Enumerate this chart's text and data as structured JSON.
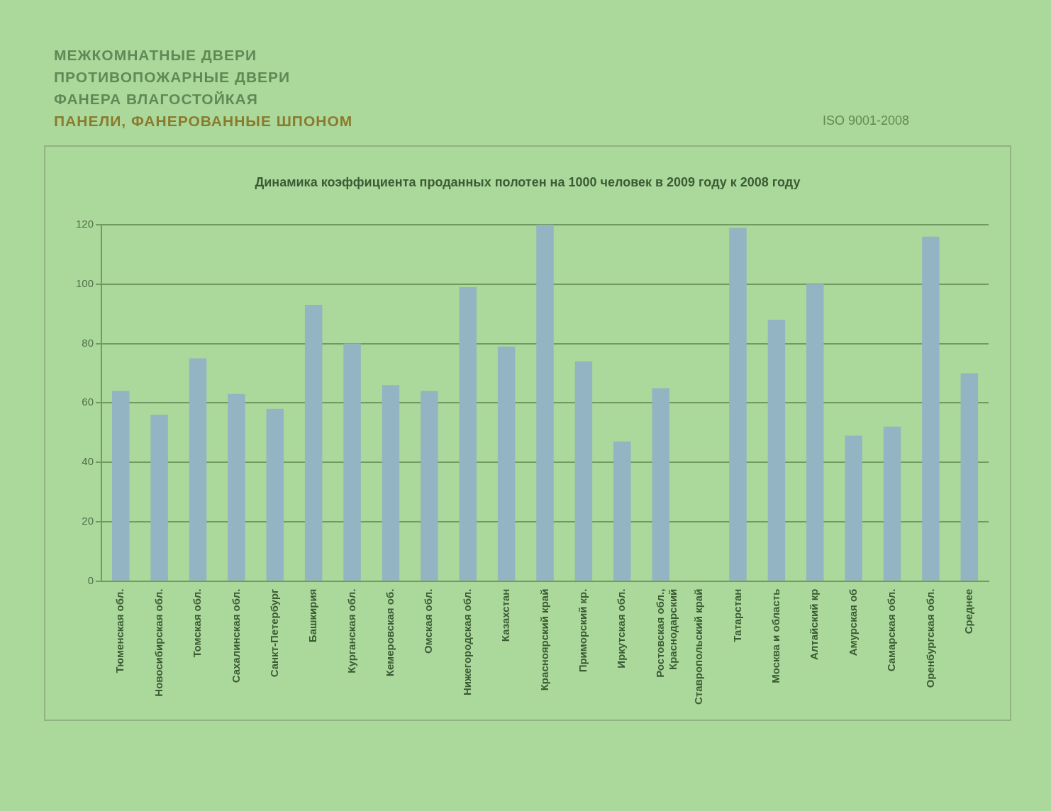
{
  "chart_data": {
    "type": "bar",
    "title": "Динамика коэффициента проданных полотен на 1000 человек в 2009 году к 2008 году",
    "annotations": [
      "МЕЖКОМНАТНЫЕ ДВЕРИ",
      "ПРОТИВОПОЖАРНЫЕ ДВЕРИ",
      "ФАНЕРА ВЛАГОСТОЙКАЯ",
      "ПАНЕЛИ, ФАНЕРОВАННЫЕ ШПОНОМ",
      "ISO 9001-2008"
    ],
    "categories": [
      "Тюменская обл.",
      "Новосибирская обл.",
      "Томская обл.",
      "Сахалинская обл.",
      "Санкт-Петербург",
      "Башкирия",
      "Курганская обл.",
      "Кемеровская об.",
      "Омская обл.",
      "Нижегородская обл.",
      "Казахстан",
      "Красноярский край",
      "Приморский кр.",
      "Иркутская обл.",
      "Ростовская обл.,Краснодарский",
      "Ставропольский край",
      "Татарстан",
      "Москва и область",
      "Алтайский кр",
      "Амурская об",
      "Самарская обл.",
      "Оренбургская обл.",
      "Среднее"
    ],
    "values": [
      64,
      56,
      75,
      63,
      58,
      93,
      80,
      66,
      64,
      99,
      79,
      120,
      74,
      47,
      65,
      null,
      119,
      88,
      100,
      49,
      52,
      116,
      70
    ],
    "color": "#93b4c2",
    "ylim": [
      0,
      120
    ],
    "yticks": [
      0,
      20,
      40,
      60,
      80,
      100,
      120
    ],
    "grid": "y"
  }
}
